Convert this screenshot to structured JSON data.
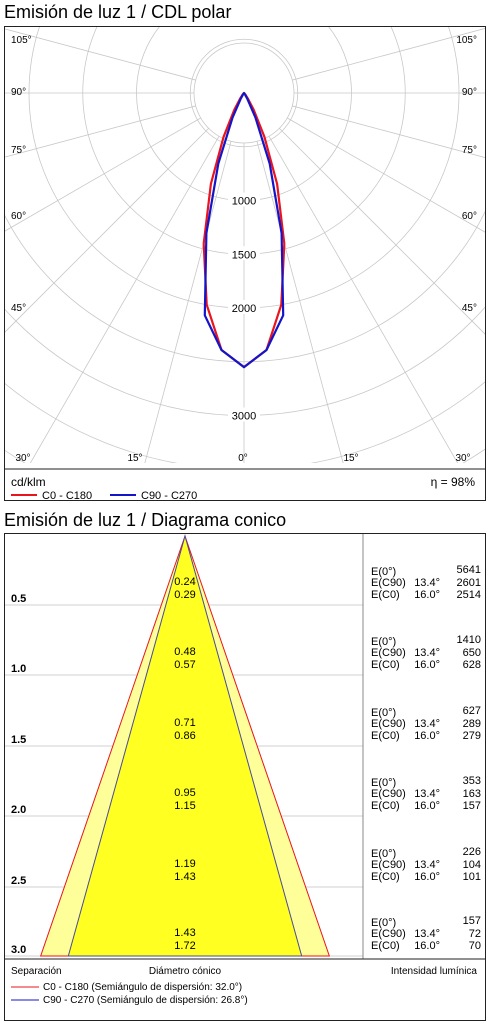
{
  "polar": {
    "title": "Emisión de luz 1 / CDL polar",
    "unit": "cd/klm",
    "efficiency": "η = 98%",
    "side_angle_labels": [
      "105°",
      "90°",
      "75°",
      "60°",
      "45°"
    ],
    "bottom_angle_labels": [
      "30°",
      "15°",
      "0°",
      "15°",
      "30°"
    ],
    "radial_labels": [
      "1000",
      "1500",
      "2000",
      "3000"
    ],
    "legend": [
      {
        "name": "C0 - C180",
        "color": "#e8141e"
      },
      {
        "name": "C90 - C270",
        "color": "#1414c8"
      }
    ]
  },
  "cone": {
    "title": "Emisión de luz 1 / Diagrama conico",
    "footer_left": "Separación",
    "footer_center": "Diámetro cónico",
    "footer_right": "Intensidad lumínica",
    "legend": [
      {
        "name": "C0 - C180 (Semiángulo de dispersión: 32.0°)",
        "color": "#e8141e"
      },
      {
        "name": "C90 - C270 (Semiángulo de dispersión: 26.8°)",
        "color": "#1414c8"
      }
    ],
    "rows": [
      {
        "sep": "0.5",
        "d90": "0.24",
        "d0": "0.29",
        "e0": "5641",
        "e90": "2601",
        "ec0": "2514"
      },
      {
        "sep": "1.0",
        "d90": "0.48",
        "d0": "0.57",
        "e0": "1410",
        "e90": "650",
        "ec0": "628"
      },
      {
        "sep": "1.5",
        "d90": "0.71",
        "d0": "0.86",
        "e0": "627",
        "e90": "289",
        "ec0": "279"
      },
      {
        "sep": "2.0",
        "d90": "0.95",
        "d0": "1.15",
        "e0": "353",
        "e90": "163",
        "ec0": "157"
      },
      {
        "sep": "2.5",
        "d90": "1.19",
        "d0": "1.43",
        "e0": "226",
        "e90": "104",
        "ec0": "101"
      },
      {
        "sep": "3.0",
        "d90": "1.43",
        "d0": "1.72",
        "e0": "157",
        "e90": "72",
        "ec0": "70"
      }
    ],
    "row_labels": {
      "e0": "E(0°)",
      "e90": "E(C90)",
      "ec0": "E(C0)",
      "a90": "13.4°",
      "a0": "16.0°"
    }
  },
  "chart_data": [
    {
      "type": "polar",
      "title": "Emisión de luz 1 / CDL polar",
      "unit": "cd/klm",
      "radial_ticks": [
        1000,
        1500,
        2000,
        3000
      ],
      "efficiency_percent": 98,
      "series": [
        {
          "name": "C0 - C180",
          "angles_deg": [
            0,
            5,
            10,
            15,
            20,
            25,
            30,
            35,
            40,
            45,
            50
          ],
          "values": [
            2550,
            2400,
            2000,
            1450,
            900,
            450,
            180,
            60,
            20,
            5,
            0
          ]
        },
        {
          "name": "C90 - C270",
          "angles_deg": [
            0,
            5,
            10,
            15,
            20,
            25,
            30,
            35,
            40
          ],
          "values": [
            2550,
            2400,
            2100,
            1350,
            700,
            250,
            60,
            15,
            0
          ]
        }
      ]
    },
    {
      "type": "table",
      "title": "Emisión de luz 1 / Diagrama conico",
      "half_angles_deg": {
        "C0 - C180": 32.0,
        "C90 - C270": 26.8
      },
      "columns": [
        "Separación",
        "Diámetro C90",
        "Diámetro C0",
        "E(0°)",
        "E(C90) 13.4°",
        "E(C0) 16.0°"
      ],
      "rows": [
        [
          0.5,
          0.24,
          0.29,
          5641,
          2601,
          2514
        ],
        [
          1.0,
          0.48,
          0.57,
          1410,
          650,
          628
        ],
        [
          1.5,
          0.71,
          0.86,
          627,
          289,
          279
        ],
        [
          2.0,
          0.95,
          1.15,
          353,
          163,
          157
        ],
        [
          2.5,
          1.19,
          1.43,
          226,
          104,
          101
        ],
        [
          3.0,
          1.43,
          1.72,
          157,
          72,
          70
        ]
      ]
    }
  ]
}
